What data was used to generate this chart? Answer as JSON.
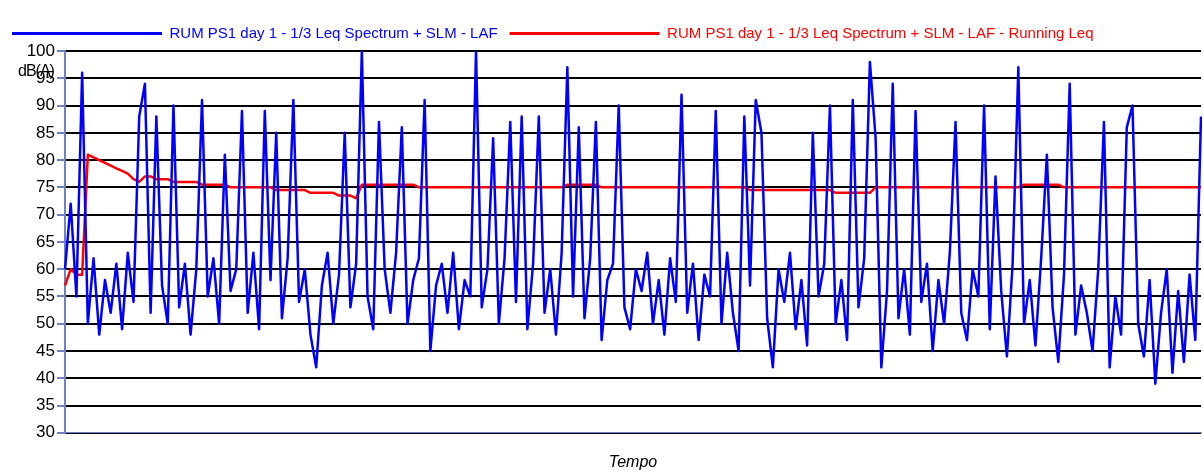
{
  "chart_data": {
    "type": "line",
    "xlabel": "Tempo",
    "ylabel": "dB(A)",
    "ylim": [
      30,
      100
    ],
    "yticks": [
      30,
      35,
      40,
      45,
      50,
      55,
      60,
      65,
      70,
      75,
      80,
      85,
      90,
      95,
      100
    ],
    "grid": "y",
    "legend": "top",
    "tick_labels": "y",
    "marker": "none",
    "line_style": "solid",
    "categories": [
      null,
      null,
      null,
      null,
      null,
      null,
      null,
      null,
      null,
      null,
      null,
      null,
      null,
      null,
      null,
      null,
      null,
      null,
      null,
      null,
      null,
      null,
      null,
      null,
      null,
      null,
      null,
      null,
      null,
      null,
      null,
      null,
      null,
      null,
      null,
      null,
      null,
      null,
      null,
      null,
      null,
      null,
      null,
      null,
      null,
      null,
      null,
      null,
      null,
      null,
      null,
      null,
      null,
      null,
      null,
      null,
      null,
      null,
      null,
      null,
      null,
      null,
      null,
      null,
      null,
      null,
      null,
      null,
      null,
      null,
      null,
      null,
      null,
      null,
      null,
      null,
      null,
      null,
      null,
      null,
      null,
      null,
      null,
      null,
      null,
      null,
      null,
      null,
      null,
      null,
      null,
      null,
      null,
      null,
      null,
      null,
      null,
      null,
      null,
      null,
      null,
      null,
      null,
      null,
      null,
      null,
      null,
      null,
      null,
      null,
      null,
      null,
      null,
      null,
      null,
      null,
      null,
      null,
      null,
      null,
      null,
      null,
      null,
      null,
      null,
      null,
      null,
      null,
      null,
      null,
      null,
      null,
      null,
      null,
      null,
      null,
      null,
      null,
      null,
      null,
      null,
      null,
      null,
      null,
      null,
      null,
      null,
      null,
      null,
      null,
      null,
      null,
      null,
      null,
      null,
      null,
      null,
      null,
      null,
      null,
      null,
      null,
      null,
      null,
      null,
      null,
      null,
      null,
      null,
      null,
      null,
      null,
      null,
      null,
      null,
      null,
      null,
      null,
      null,
      null,
      null,
      null,
      null,
      null,
      null,
      null,
      null,
      null,
      null,
      null,
      null,
      null,
      null,
      null,
      null,
      null,
      null,
      null,
      null,
      null
    ],
    "series": [
      {
        "name": "RUM PS1 day 1 - 1/3 Leq Spectrum + SLM - LAF",
        "color": "#0000ff",
        "values": [
          60,
          72,
          55,
          96,
          50,
          62,
          48,
          58,
          52,
          61,
          49,
          63,
          54,
          88,
          94,
          52,
          88,
          57,
          50,
          90,
          53,
          61,
          48,
          60,
          91,
          55,
          62,
          50,
          81,
          56,
          60,
          89,
          52,
          63,
          49,
          89,
          58,
          85,
          51,
          62,
          91,
          54,
          60,
          48,
          42,
          57,
          63,
          50,
          59,
          85,
          53,
          61,
          100,
          55,
          49,
          87,
          60,
          52,
          63,
          86,
          50,
          58,
          62,
          91,
          45,
          57,
          61,
          52,
          63,
          49,
          58,
          55,
          100,
          53,
          60,
          84,
          50,
          62,
          87,
          54,
          88,
          49,
          61,
          88,
          52,
          60,
          48,
          63,
          97,
          55,
          86,
          51,
          62,
          87,
          47,
          58,
          61,
          90,
          53,
          49,
          60,
          56,
          63,
          50,
          58,
          48,
          62,
          54,
          92,
          52,
          61,
          47,
          59,
          55,
          89,
          50,
          63,
          52,
          45,
          88,
          57,
          91,
          85,
          51,
          42,
          60,
          54,
          63,
          49,
          58,
          46,
          85,
          55,
          61,
          90,
          50,
          58,
          47,
          91,
          53,
          62,
          98,
          84,
          42,
          56,
          94,
          51,
          60,
          48,
          89,
          54,
          61,
          45,
          58,
          50,
          63,
          87,
          52,
          47,
          60,
          55,
          90,
          49,
          77,
          56,
          44,
          61,
          97,
          50,
          58,
          46,
          62,
          81,
          53,
          43,
          59,
          94,
          48,
          57,
          52,
          45,
          60,
          87,
          42,
          55,
          48,
          86,
          90,
          50,
          44,
          58,
          39,
          52,
          60,
          41,
          56,
          43,
          59,
          47,
          88
        ]
      },
      {
        "name": "RUM PS1 day 1 - 1/3 Leq Spectrum + SLM - LAF - Running Leq",
        "color": "#ff0000",
        "values": [
          57,
          60,
          59,
          59,
          81,
          80.5,
          80,
          79.5,
          79,
          78.5,
          78,
          77.5,
          76.5,
          76,
          77,
          77,
          76.5,
          76.5,
          76.5,
          76,
          76,
          76,
          76,
          76,
          75.5,
          75.5,
          75.5,
          75.5,
          75.5,
          75,
          75,
          75,
          75,
          75,
          75,
          75,
          75,
          74.5,
          74.5,
          74.5,
          74.5,
          74.5,
          74.5,
          74,
          74,
          74,
          74,
          74,
          73.5,
          73.5,
          73.5,
          73,
          75.5,
          75.5,
          75.5,
          75.5,
          75.5,
          75.5,
          75.5,
          75.5,
          75.5,
          75.5,
          75,
          75,
          75,
          75,
          75,
          75,
          75,
          75,
          75,
          75,
          75,
          75,
          75,
          75,
          75,
          75,
          75,
          75,
          75,
          75,
          75,
          75,
          75,
          75,
          75,
          75,
          75.5,
          75.5,
          75.5,
          75.5,
          75.5,
          75.5,
          75,
          75,
          75,
          75,
          75,
          75,
          75,
          75,
          75,
          75,
          75,
          75,
          75,
          75,
          75,
          75,
          75,
          75,
          75,
          75,
          75,
          75,
          75,
          75,
          75,
          75,
          74.5,
          74.5,
          74.5,
          74.5,
          74.5,
          74.5,
          74.5,
          74.5,
          74.5,
          74.5,
          74.5,
          74.5,
          74.5,
          74.5,
          74.5,
          74,
          74,
          74,
          74,
          74,
          74,
          74,
          75,
          75,
          75,
          75,
          75,
          75,
          75,
          75,
          75,
          75,
          75,
          75,
          75,
          75,
          75,
          75,
          75,
          75,
          75,
          75,
          75,
          75,
          75,
          75,
          75,
          75,
          75.5,
          75.5,
          75.5,
          75.5,
          75.5,
          75.5,
          75.5,
          75,
          75,
          75,
          75,
          75,
          75,
          75,
          75,
          75,
          75,
          75,
          75,
          75,
          75,
          75,
          75,
          75,
          75,
          75,
          75,
          75,
          75,
          75,
          75,
          75
        ]
      }
    ]
  }
}
